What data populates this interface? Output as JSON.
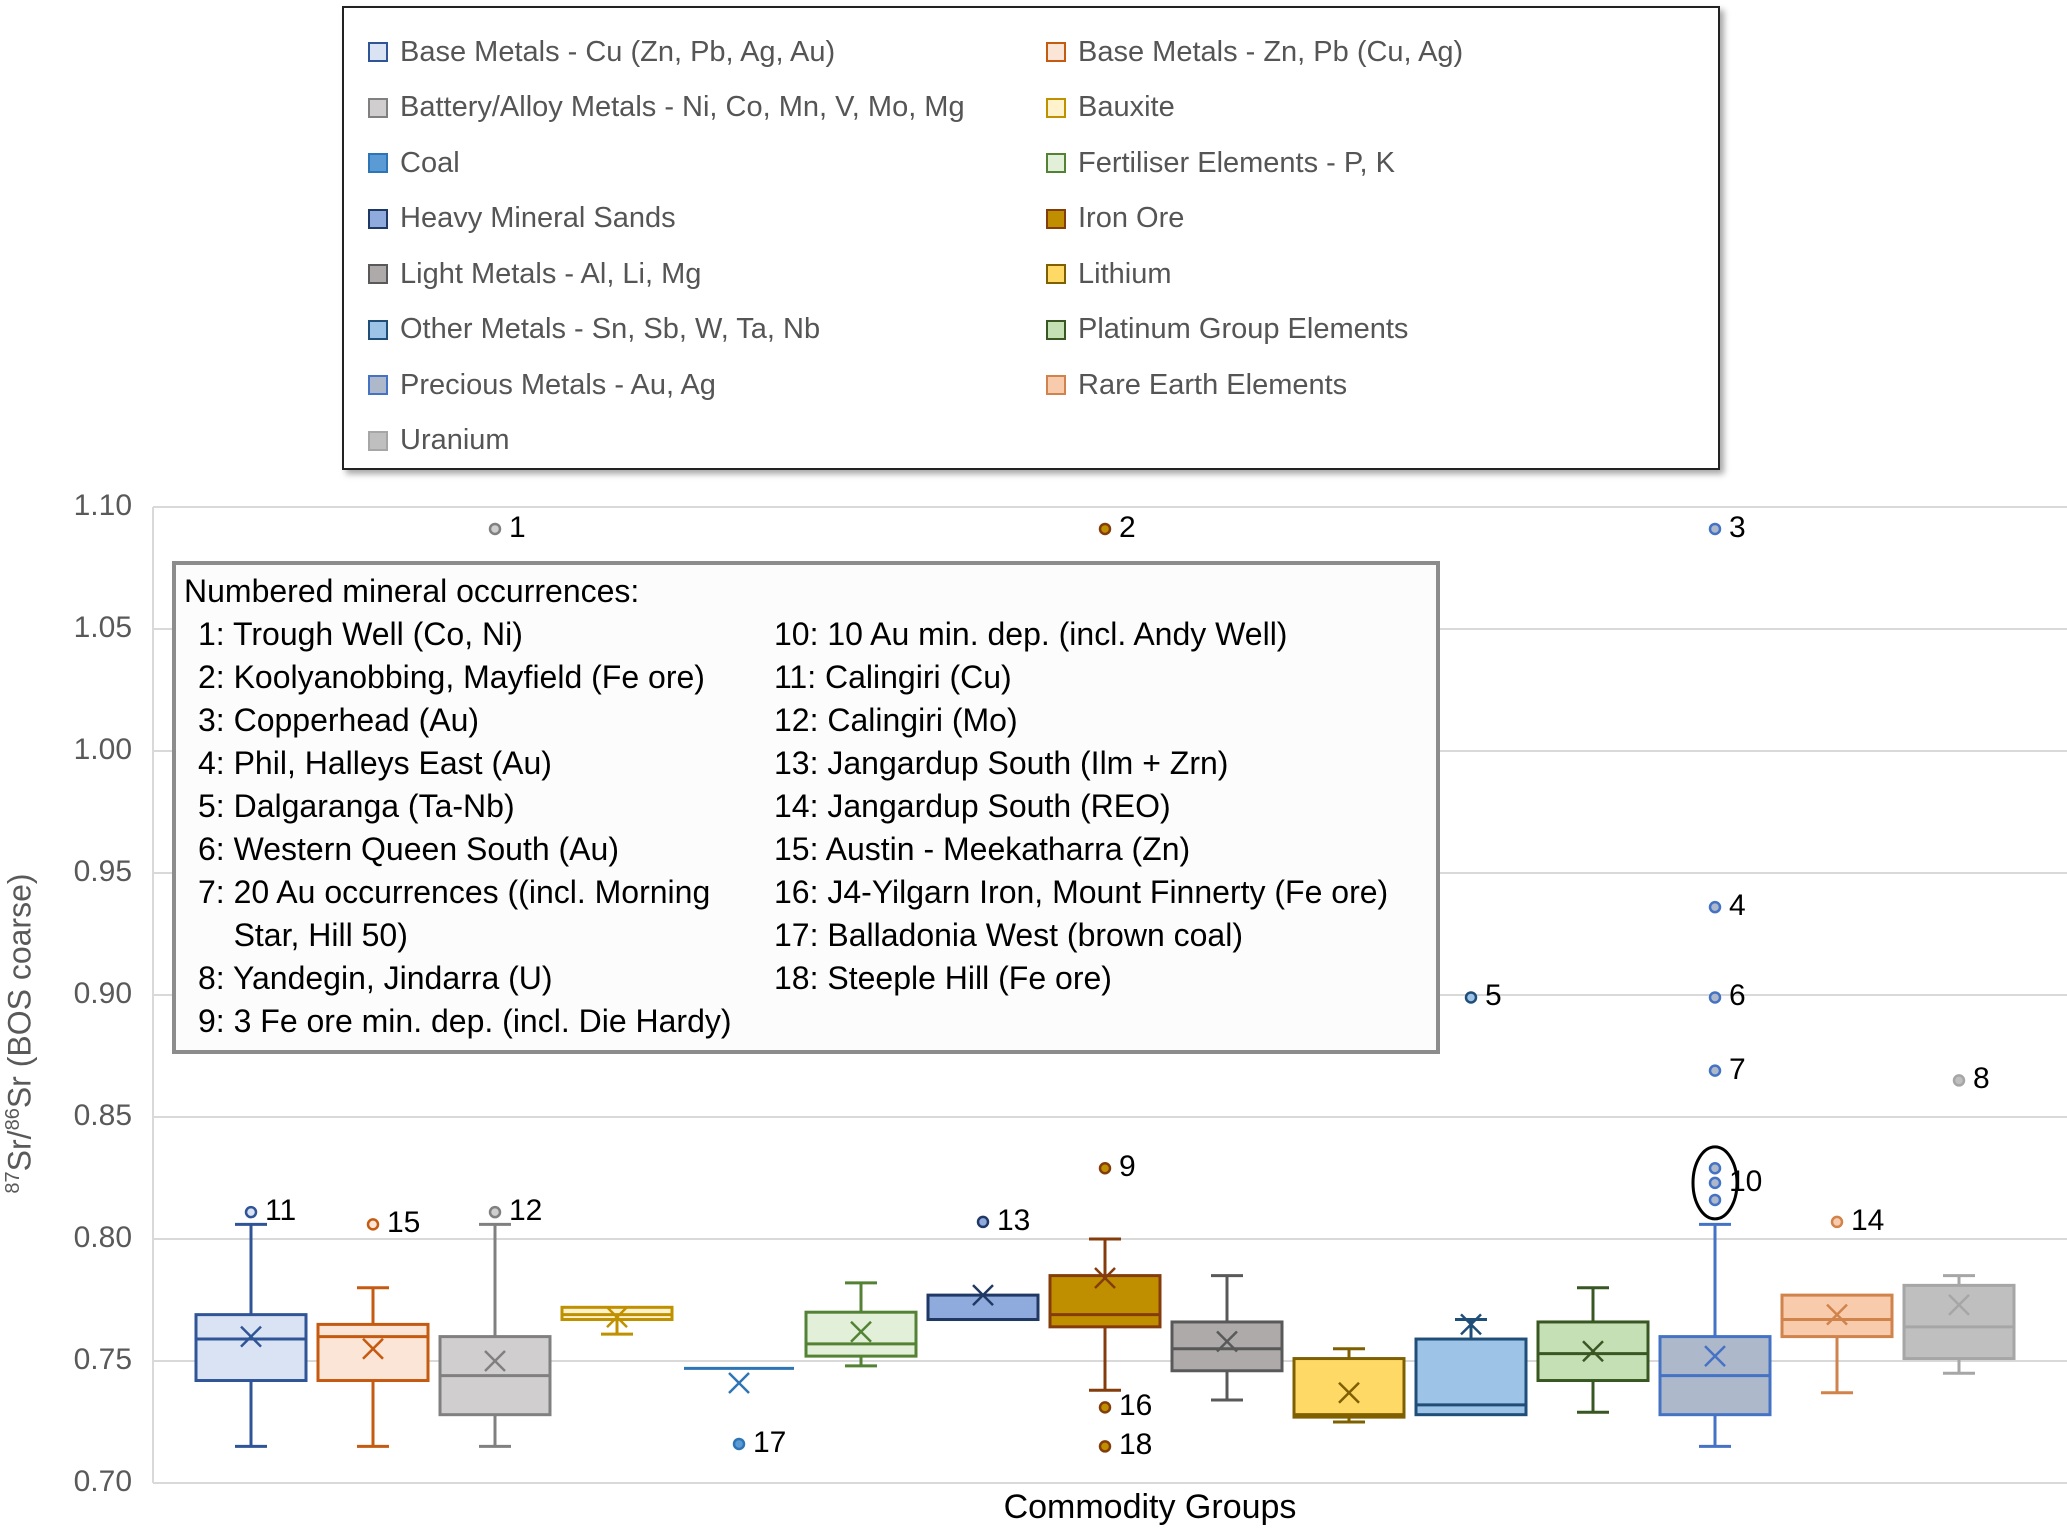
{
  "legend": {
    "items": [
      {
        "label": "Base Metals - Cu (Zn, Pb, Ag, Au)",
        "fill": "#dae3f3",
        "stroke": "#2f5597"
      },
      {
        "label": "Base Metals - Zn, Pb (Cu, Ag)",
        "fill": "#fbe5d6",
        "stroke": "#c55a11"
      },
      {
        "label": "Battery/Alloy Metals - Ni, Co, Mn, V, Mo, Mg",
        "fill": "#d0cece",
        "stroke": "#808080"
      },
      {
        "label": "Bauxite",
        "fill": "#fff2cc",
        "stroke": "#bf9000"
      },
      {
        "label": "Coal",
        "fill": "#5b9bd5",
        "stroke": "#2e75b6"
      },
      {
        "label": "Fertiliser Elements - P, K",
        "fill": "#e2f0d9",
        "stroke": "#548235"
      },
      {
        "label": "Heavy Mineral Sands",
        "fill": "#8faadc",
        "stroke": "#203864"
      },
      {
        "label": "Iron Ore",
        "fill": "#bf8f00",
        "stroke": "#843c0c"
      },
      {
        "label": "Light Metals - Al, Li, Mg",
        "fill": "#aeaaaa",
        "stroke": "#595959"
      },
      {
        "label": "Lithium",
        "fill": "#ffd966",
        "stroke": "#7f6000"
      },
      {
        "label": "Other Metals - Sn, Sb, W, Ta, Nb",
        "fill": "#9dc3e6",
        "stroke": "#1f4e79"
      },
      {
        "label": "Platinum Group Elements",
        "fill": "#c5e0b4",
        "stroke": "#385723"
      },
      {
        "label": "Precious Metals - Au, Ag",
        "fill": "#adb9ca",
        "stroke": "#4472c4"
      },
      {
        "label": "Rare Earth Elements",
        "fill": "#f8cbad",
        "stroke": "#d0834a"
      },
      {
        "label": "Uranium",
        "fill": "#bfbfbf",
        "stroke": "#a6a6a6"
      }
    ]
  },
  "notes": {
    "title": "Numbered mineral occurrences:",
    "left": [
      "1: Trough Well (Co, Ni)",
      "2: Koolyanobbing, Mayfield (Fe ore)",
      "3: Copperhead (Au)",
      "4: Phil, Halleys East (Au)",
      "5: Dalgaranga (Ta-Nb)",
      "6: Western Queen South (Au)",
      "7: 20 Au occurrences ((incl. Morning",
      "    Star, Hill 50)",
      "8: Yandegin, Jindarra (U)",
      "9: 3 Fe ore min. dep. (incl. Die Hardy)"
    ],
    "right": [
      "10: 10 Au min. dep. (incl. Andy Well)",
      "11: Calingiri (Cu)",
      "12: Calingiri (Mo)",
      "13: Jangardup South (Ilm + Zrn)",
      "14: Jangardup South (REO)",
      "15: Austin - Meekatharra (Zn)",
      "16: J4-Yilgarn Iron, Mount Finnerty (Fe ore)",
      "17: Balladonia West (brown coal)",
      "18: Steeple Hill (Fe ore)"
    ]
  },
  "chart_data": {
    "type": "box",
    "title": "",
    "xlabel": "Commodity Groups",
    "ylabel": "87Sr/86Sr (BOS coarse)",
    "ylabel_parts": {
      "sup1": "87",
      "base1": "Sr/",
      "sup2": "86",
      "base2": "Sr (BOS coarse)"
    },
    "ylim": [
      0.7,
      1.1
    ],
    "yticks": [
      "0.70",
      "0.75",
      "0.80",
      "0.85",
      "0.90",
      "0.95",
      "1.00",
      "1.05",
      "1.10"
    ],
    "grid": true,
    "legend_position": "top",
    "series": [
      {
        "name": "Base Metals - Cu (Zn, Pb, Ag, Au)",
        "min": 0.715,
        "q1": 0.742,
        "median": 0.759,
        "q3": 0.769,
        "max": 0.806,
        "mean": 0.76,
        "outliers": [
          {
            "value": 0.811,
            "label": "11"
          }
        ]
      },
      {
        "name": "Base Metals - Zn, Pb (Cu, Ag)",
        "min": 0.715,
        "q1": 0.742,
        "median": 0.76,
        "q3": 0.765,
        "max": 0.78,
        "mean": 0.755,
        "outliers": [
          {
            "value": 0.806,
            "label": "15"
          }
        ]
      },
      {
        "name": "Battery/Alloy Metals - Ni, Co, Mn, V, Mo, Mg",
        "min": 0.715,
        "q1": 0.728,
        "median": 0.744,
        "q3": 0.76,
        "max": 0.806,
        "mean": 0.75,
        "outliers": [
          {
            "value": 0.811,
            "label": "12"
          },
          {
            "value": 1.091,
            "label": "1"
          }
        ]
      },
      {
        "name": "Bauxite",
        "min": 0.761,
        "q1": 0.767,
        "median": 0.769,
        "q3": 0.772,
        "max": 0.772,
        "mean": 0.768,
        "outliers": []
      },
      {
        "name": "Coal",
        "min": 0.747,
        "q1": 0.747,
        "median": 0.747,
        "q3": 0.747,
        "max": 0.747,
        "mean": 0.741,
        "outliers": [
          {
            "value": 0.716,
            "label": "17"
          }
        ]
      },
      {
        "name": "Fertiliser Elements - P, K",
        "min": 0.748,
        "q1": 0.752,
        "median": 0.757,
        "q3": 0.77,
        "max": 0.782,
        "mean": 0.762,
        "outliers": []
      },
      {
        "name": "Heavy Mineral Sands",
        "min": 0.767,
        "q1": 0.767,
        "median": 0.767,
        "q3": 0.777,
        "max": 0.777,
        "mean": 0.777,
        "outliers": [
          {
            "value": 0.807,
            "label": "13"
          }
        ]
      },
      {
        "name": "Iron Ore",
        "min": 0.738,
        "q1": 0.764,
        "median": 0.769,
        "q3": 0.785,
        "max": 0.8,
        "mean": 0.784,
        "outliers": [
          {
            "value": 0.829,
            "label": "9"
          },
          {
            "value": 0.731,
            "label": "16"
          },
          {
            "value": 0.715,
            "label": "18"
          },
          {
            "value": 1.091,
            "label": "2"
          }
        ]
      },
      {
        "name": "Light Metals - Al, Li, Mg",
        "min": 0.734,
        "q1": 0.746,
        "median": 0.755,
        "q3": 0.766,
        "max": 0.785,
        "mean": 0.758,
        "outliers": []
      },
      {
        "name": "Lithium",
        "min": 0.725,
        "q1": 0.727,
        "median": 0.728,
        "q3": 0.751,
        "max": 0.755,
        "mean": 0.737,
        "outliers": []
      },
      {
        "name": "Other Metals - Sn, Sb, W, Ta, Nb",
        "min": 0.728,
        "q1": 0.728,
        "median": 0.732,
        "q3": 0.759,
        "max": 0.767,
        "mean": 0.765,
        "outliers": [
          {
            "value": 0.899,
            "label": "5"
          }
        ]
      },
      {
        "name": "Platinum Group Elements",
        "min": 0.729,
        "q1": 0.742,
        "median": 0.753,
        "q3": 0.766,
        "max": 0.78,
        "mean": 0.754,
        "outliers": []
      },
      {
        "name": "Precious Metals - Au, Ag",
        "min": 0.715,
        "q1": 0.728,
        "median": 0.744,
        "q3": 0.76,
        "max": 0.806,
        "mean": 0.752,
        "outliers": [
          {
            "value": 1.091,
            "label": "3"
          },
          {
            "value": 0.936,
            "label": "4"
          },
          {
            "value": 0.899,
            "label": "6"
          },
          {
            "value": 0.869,
            "label": "7"
          },
          {
            "value": 0.829,
            "label": ""
          },
          {
            "value": 0.823,
            "label": "10"
          },
          {
            "value": 0.816,
            "label": ""
          }
        ]
      },
      {
        "name": "Rare Earth Elements",
        "min": 0.737,
        "q1": 0.76,
        "median": 0.767,
        "q3": 0.777,
        "max": 0.777,
        "mean": 0.769,
        "outliers": [
          {
            "value": 0.807,
            "label": "14"
          }
        ]
      },
      {
        "name": "Uranium",
        "min": 0.745,
        "q1": 0.751,
        "median": 0.764,
        "q3": 0.781,
        "max": 0.785,
        "mean": 0.773,
        "outliers": [
          {
            "value": 0.865,
            "label": "8"
          }
        ]
      }
    ],
    "annotations": [
      {
        "text": "ellipse around group 10 outliers",
        "series": "Precious Metals - Au, Ag"
      }
    ]
  }
}
